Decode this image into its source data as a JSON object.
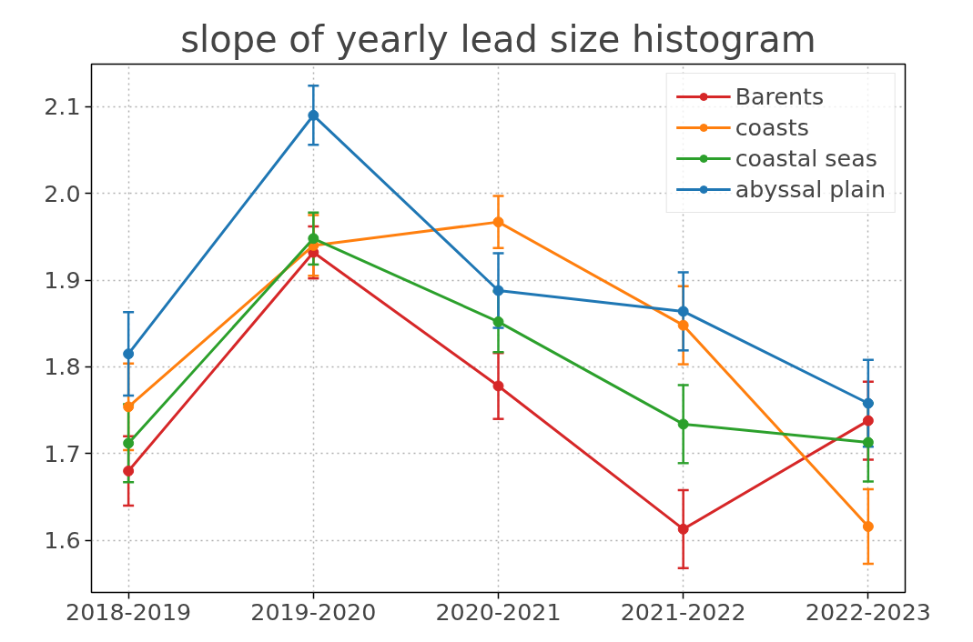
{
  "chart_data": {
    "type": "line",
    "title": "slope of yearly lead size histogram",
    "categories": [
      "2018-2019",
      "2019-2020",
      "2020-2021",
      "2021-2022",
      "2022-2023"
    ],
    "series": [
      {
        "name": "Barents",
        "color": "#d62728",
        "values": [
          1.68,
          1.932,
          1.778,
          1.613,
          1.738
        ],
        "errors": [
          0.04,
          0.03,
          0.038,
          0.045,
          0.045
        ]
      },
      {
        "name": "coasts",
        "color": "#ff7f0e",
        "values": [
          1.754,
          1.94,
          1.967,
          1.848,
          1.616
        ],
        "errors": [
          0.05,
          0.035,
          0.03,
          0.045,
          0.043
        ]
      },
      {
        "name": "coastal seas",
        "color": "#2ca02c",
        "values": [
          1.712,
          1.948,
          1.852,
          1.734,
          1.713
        ],
        "errors": [
          0.045,
          0.03,
          0.035,
          0.045,
          0.045
        ]
      },
      {
        "name": "abyssal plain",
        "color": "#1f77b4",
        "values": [
          1.815,
          2.09,
          1.888,
          1.864,
          1.758
        ],
        "errors": [
          0.048,
          0.034,
          0.043,
          0.045,
          0.05
        ]
      }
    ],
    "ylim": [
      1.54,
      2.149
    ],
    "yticks": [
      1.6,
      1.7,
      1.8,
      1.9,
      {
        "value": 2,
        "label": "2.0"
      },
      2.1
    ],
    "grid": true,
    "legend": "top right",
    "marker": "circle",
    "line_style": "solid"
  }
}
